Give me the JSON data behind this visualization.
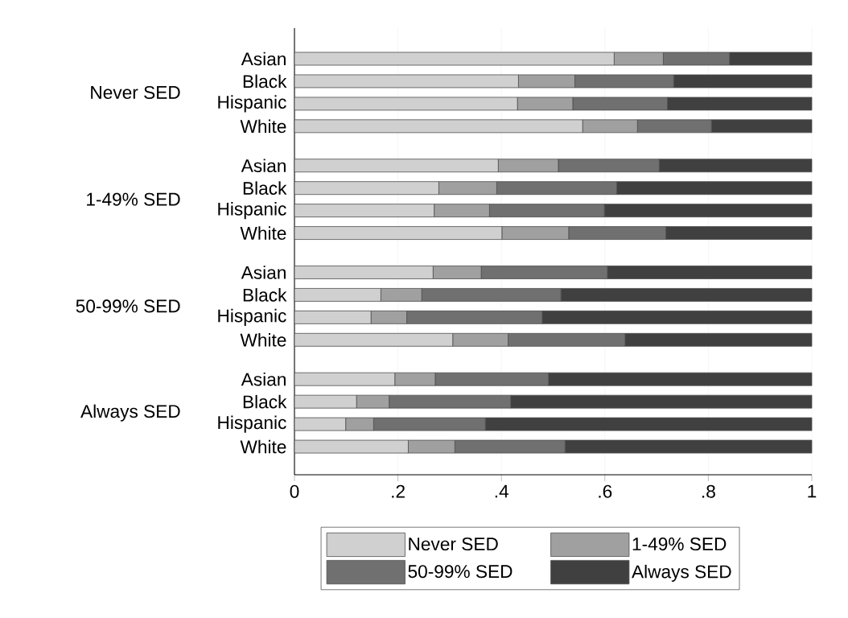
{
  "chart_data": {
    "type": "bar",
    "orientation": "horizontal",
    "stacked": true,
    "categories": [
      "Asian",
      "Black",
      "Hispanic",
      "White",
      "Asian",
      "Black",
      "Hispanic",
      "White",
      "Asian",
      "Black",
      "Hispanic",
      "White",
      "Asian",
      "Black",
      "Hispanic",
      "White"
    ],
    "annotations": [
      "Never SED",
      "1-49% SED",
      "50-99% SED",
      "Always SED"
    ],
    "series": [
      {
        "name": "Never SED",
        "color": "#d0d0d0",
        "values": [
          0.618,
          0.433,
          0.431,
          0.557,
          0.394,
          0.279,
          0.27,
          0.401,
          0.268,
          0.167,
          0.148,
          0.306,
          0.194,
          0.12,
          0.099,
          0.22
        ]
      },
      {
        "name": "1-49% SED",
        "color": "#a0a0a0",
        "values": [
          0.095,
          0.109,
          0.107,
          0.106,
          0.116,
          0.112,
          0.107,
          0.129,
          0.093,
          0.079,
          0.069,
          0.107,
          0.078,
          0.063,
          0.054,
          0.09
        ]
      },
      {
        "name": "50-99% SED",
        "color": "#707070",
        "values": [
          0.128,
          0.191,
          0.183,
          0.143,
          0.195,
          0.232,
          0.222,
          0.188,
          0.244,
          0.269,
          0.262,
          0.226,
          0.219,
          0.235,
          0.216,
          0.213
        ]
      },
      {
        "name": "Always SED",
        "color": "#404040",
        "values": [
          0.159,
          0.267,
          0.279,
          0.194,
          0.295,
          0.377,
          0.401,
          0.282,
          0.395,
          0.485,
          0.521,
          0.361,
          0.509,
          0.582,
          0.631,
          0.477
        ]
      }
    ],
    "xlim": [
      0,
      1
    ],
    "xticks": [
      0,
      {
        "value": 0.2,
        "label": ".2"
      },
      {
        "value": 0.4,
        "label": ".4"
      },
      {
        "value": 0.6,
        "label": ".6"
      },
      {
        "value": 0.8,
        "label": ".8"
      },
      1
    ],
    "grid": "x",
    "legend": "bottom"
  }
}
